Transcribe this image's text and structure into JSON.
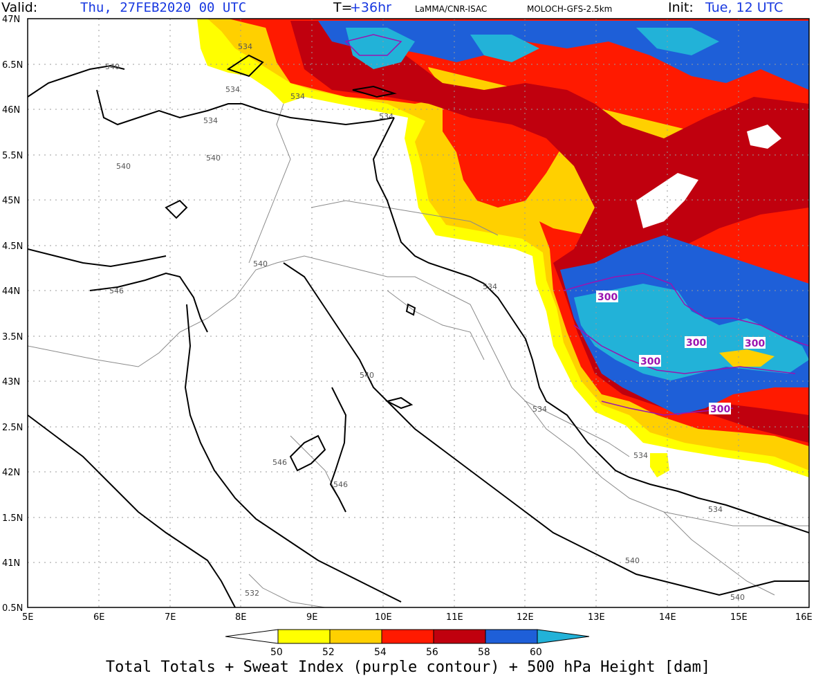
{
  "header": {
    "valid_label": "Valid:",
    "valid_value": "Thu, 27FEB2020   00 UTC",
    "t_label": "T=",
    "t_value": "+36hr",
    "org": "LaMMA/CNR-ISAC",
    "model": "MOLOCH-GFS-2.5km",
    "init_label": "Init:",
    "init_value": "Tue, 12 UTC"
  },
  "map": {
    "lat_labels": [
      "47N",
      "6.5N",
      "46N",
      "5.5N",
      "45N",
      "4.5N",
      "44N",
      "3.5N",
      "43N",
      "2.5N",
      "42N",
      "1.5N",
      "41N",
      "0.5N"
    ],
    "lon_labels": [
      "5E",
      "6E",
      "7E",
      "8E",
      "9E",
      "10E",
      "11E",
      "12E",
      "13E",
      "14E",
      "15E",
      "16E"
    ],
    "height_contour_labels": [
      "534",
      "534",
      "534",
      "534",
      "534",
      "540",
      "540",
      "540",
      "546",
      "540",
      "534",
      "534",
      "534",
      "540",
      "546",
      "546",
      "534",
      "532",
      "540",
      "540"
    ],
    "sweat_labels": [
      "300",
      "300",
      "300",
      "300",
      "300"
    ]
  },
  "colorbar": {
    "ticks": [
      "50",
      "52",
      "54",
      "56",
      "58",
      "60"
    ],
    "colors": [
      "#ffff00",
      "#ffd000",
      "#ff1a00",
      "#c0000e",
      "#1e5fd8",
      "#22b2d8"
    ]
  },
  "caption": "Total Totals + Sweat Index (purple contour) + 500 hPa Height [dam]"
}
